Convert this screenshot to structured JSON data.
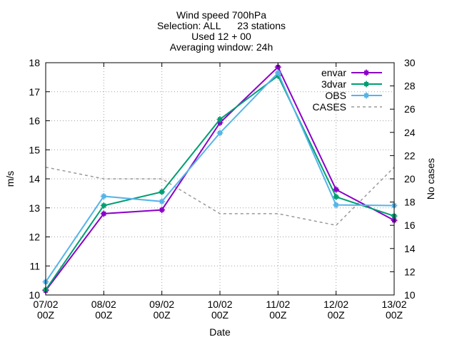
{
  "chart_data": {
    "type": "line",
    "title_lines": [
      "Wind speed 700hPa",
      "Selection: ALL      23 stations",
      "Used 12 + 00",
      "Averaging window: 24h"
    ],
    "xlabel": "Date",
    "ylabel": "m/s",
    "y2label": "No cases",
    "x": [
      "07/02 00Z",
      "08/02 00Z",
      "09/02 00Z",
      "10/02 00Z",
      "11/02 00Z",
      "12/02 00Z",
      "13/02 00Z"
    ],
    "x_tick_lines": [
      [
        "07/02",
        "00Z"
      ],
      [
        "08/02",
        "00Z"
      ],
      [
        "09/02",
        "00Z"
      ],
      [
        "10/02",
        "00Z"
      ],
      [
        "11/02",
        "00Z"
      ],
      [
        "12/02",
        "00Z"
      ],
      [
        "13/02",
        "00Z"
      ]
    ],
    "ylim": [
      10,
      18
    ],
    "y2lim": [
      10,
      30
    ],
    "yticks": [
      "10",
      "11",
      "12",
      "13",
      "14",
      "15",
      "16",
      "17",
      "18"
    ],
    "y2ticks": [
      "10",
      "12",
      "14",
      "16",
      "18",
      "20",
      "22",
      "24",
      "26",
      "28",
      "30"
    ],
    "grid": true,
    "legend_position": "top-right",
    "series": [
      {
        "name": "envar",
        "axis": "y1",
        "color": "#8b00c8",
        "dashed": false,
        "values": [
          10.15,
          12.8,
          12.93,
          15.93,
          17.85,
          13.63,
          12.57
        ]
      },
      {
        "name": "3dvar",
        "axis": "y1",
        "color": "#009e73",
        "dashed": false,
        "values": [
          10.18,
          13.08,
          13.55,
          16.05,
          17.55,
          13.38,
          12.72
        ]
      },
      {
        "name": "OBS",
        "axis": "y1",
        "color": "#56b4e9",
        "dashed": false,
        "values": [
          10.45,
          13.4,
          13.22,
          15.58,
          17.65,
          13.1,
          13.08
        ]
      },
      {
        "name": "CASES",
        "axis": "y2",
        "color": "#999999",
        "dashed": true,
        "values": [
          21,
          20,
          20,
          17,
          17,
          16,
          21
        ]
      }
    ]
  }
}
